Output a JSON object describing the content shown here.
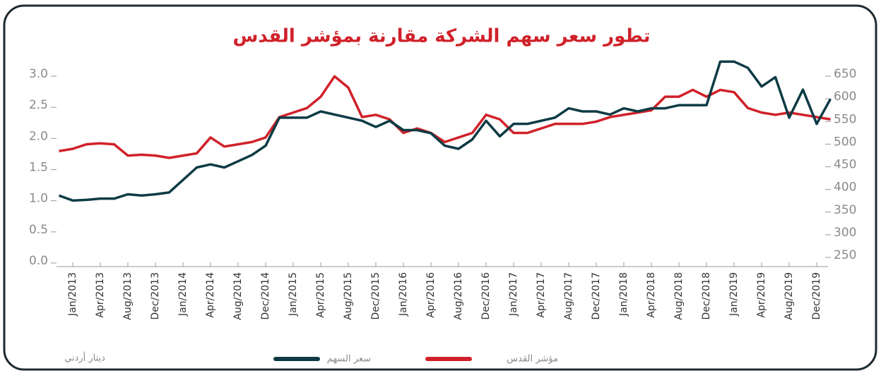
{
  "chart_data": {
    "type": "line",
    "title": "تطور سعر سهم الشركة مقارنة بمؤشر القدس",
    "ylabel": "دينار أردني",
    "categories": [
      null,
      "Jan/2013",
      null,
      "Apr/2013",
      null,
      "Aug/2013",
      null,
      "Dec/2013",
      null,
      "Jan/2014",
      null,
      "Apr/2014",
      null,
      "Aug/2014",
      null,
      "Dec/2014",
      null,
      "Jan/2015",
      null,
      "Apr/2015",
      null,
      "Aug/2015",
      null,
      "Dec/2015",
      null,
      "Jan/2016",
      null,
      "Apr/2016",
      null,
      "Aug/2016",
      null,
      "Dec/2016",
      null,
      "Jan/2017",
      null,
      "Apr/2017",
      null,
      "Aug/2017",
      null,
      "Dec/2017",
      null,
      "Jan/2018",
      null,
      "Apr/2018",
      null,
      "Aug/2018",
      null,
      "Dec/2018",
      null,
      "Jan/2019",
      null,
      "Apr/2019",
      null,
      "Aug/2019",
      null,
      "Dec/2019",
      null
    ],
    "series": [
      {
        "name": "سعر السهم",
        "color": "#0d3b45",
        "values": [
          1.05,
          0.97,
          0.98,
          1.0,
          1.0,
          1.07,
          1.05,
          1.07,
          1.1,
          1.3,
          1.5,
          1.55,
          1.5,
          1.6,
          1.7,
          1.85,
          2.3,
          2.3,
          2.3,
          2.4,
          2.35,
          2.3,
          2.25,
          2.15,
          2.25,
          2.1,
          2.1,
          2.05,
          1.85,
          1.8,
          1.95,
          2.25,
          2.0,
          2.2,
          2.2,
          2.25,
          2.3,
          2.45,
          2.4,
          2.4,
          2.35,
          2.45,
          2.4,
          2.45,
          2.45,
          2.5,
          2.5,
          2.5,
          3.2,
          3.2,
          3.1,
          2.8,
          2.95,
          2.3,
          2.75,
          2.2,
          2.6
        ]
      },
      {
        "name": "مؤشر القدس",
        "color": "#d0212a",
        "axis": "y2",
        "values": [
          480,
          485,
          495,
          497,
          495,
          470,
          472,
          470,
          465,
          470,
          475,
          510,
          490,
          495,
          500,
          510,
          555,
          565,
          575,
          600,
          645,
          620,
          555,
          560,
          550,
          520,
          530,
          520,
          500,
          510,
          520,
          560,
          550,
          520,
          520,
          530,
          540,
          540,
          540,
          545,
          555,
          560,
          565,
          570,
          600,
          600,
          615,
          600,
          615,
          610,
          575,
          565,
          560,
          565,
          560,
          555,
          550
        ]
      }
    ],
    "ylim": [
      0,
      3
    ],
    "yticks": [
      {
        "value": 0,
        "label": "0.0"
      },
      {
        "value": 0.5,
        "label": "0.5"
      },
      {
        "value": 1,
        "label": "1.0"
      },
      {
        "value": 1.5,
        "label": "1.5"
      },
      {
        "value": 2,
        "label": "2.0"
      },
      {
        "value": 2.5,
        "label": "2.5"
      },
      {
        "value": 3,
        "label": "3.0"
      }
    ],
    "y2lim": [
      250,
      650
    ],
    "y2ticks": [
      250,
      300,
      350,
      400,
      450,
      500,
      550,
      600,
      650
    ]
  }
}
